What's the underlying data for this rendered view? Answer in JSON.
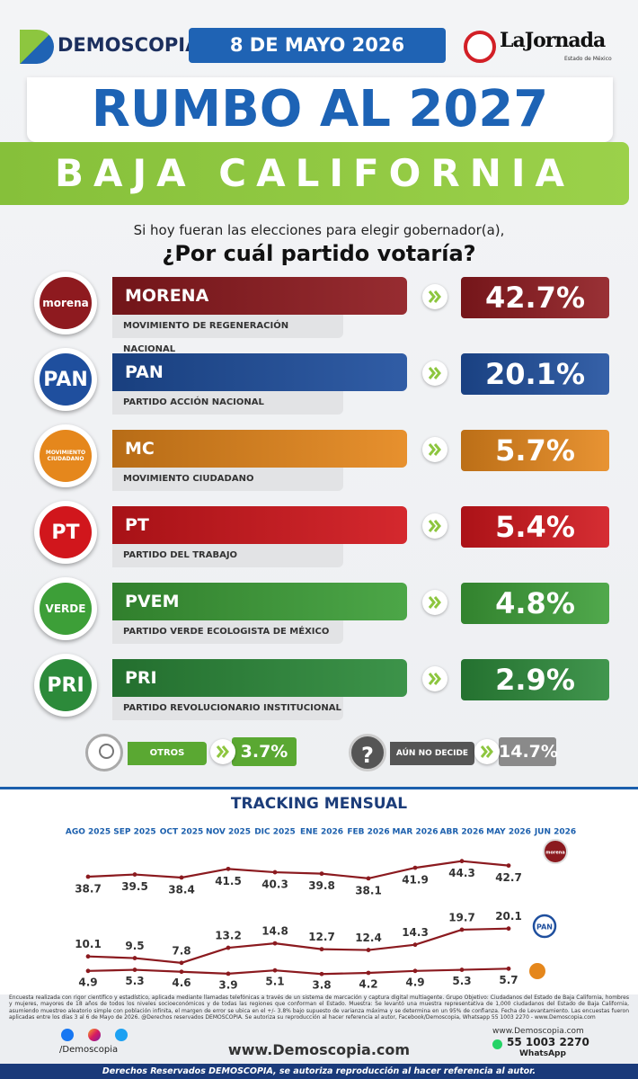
{
  "header": {
    "brand": "DEMOSCOPIA",
    "date": "8 DE MAYO 2026",
    "partner": "LaJornada",
    "partner_sub": "Estado de México"
  },
  "title": "RUMBO AL 2027",
  "subtitle": "BAJA CALIFORNIA",
  "question": {
    "line1": "Si hoy fueran las elecciones para elegir gobernador(a),",
    "line2": "¿Por cuál partido votaría?"
  },
  "parties": [
    {
      "logo": "morena",
      "name": "MORENA",
      "full_name": "MOVIMIENTO DE REGENERACIÓN NACIONAL",
      "result": "42.7%",
      "color": "#8e1a1f"
    },
    {
      "logo": "PAN",
      "name": "PAN",
      "full_name": "PARTIDO ACCIÓN NACIONAL",
      "result": "20.1%",
      "color": "#1f4f9e"
    },
    {
      "logo": "MOVIMIENTO CIUDADANO",
      "name": "MC",
      "full_name": "MOVIMIENTO CIUDADANO",
      "result": "5.7%",
      "color": "#e5871c"
    },
    {
      "logo": "PT",
      "name": "PT",
      "full_name": "PARTIDO DEL TRABAJO",
      "result": "5.4%",
      "color": "#d1161c"
    },
    {
      "logo": "VERDE",
      "name": "PVEM",
      "full_name": "PARTIDO VERDE ECOLOGISTA DE MÉXICO",
      "result": "4.8%",
      "color": "#3d9f38"
    },
    {
      "logo": "PRI",
      "name": "PRI",
      "full_name": "PARTIDO REVOLUCIONARIO INSTITUCIONAL",
      "result": "2.9%",
      "color": "#2c8a3a"
    }
  ],
  "others": {
    "label": "OTROS",
    "result": "3.7%"
  },
  "undecided": {
    "icon": "?",
    "label": "AÚN NO DECIDE",
    "result": "14.7%"
  },
  "chart_data": {
    "type": "line",
    "title": "TRACKING MENSUAL",
    "categories": [
      "AGO 2025",
      "SEP 2025",
      "OCT 2025",
      "NOV 2025",
      "DIC 2025",
      "ENE 2026",
      "FEB 2026",
      "MAR 2026",
      "ABR 2026",
      "MAY 2026",
      "JUN 2026"
    ],
    "ylim": [
      0,
      50
    ],
    "series": [
      {
        "name": "morena",
        "color": "#8b1a1f",
        "values": [
          38.7,
          39.5,
          38.4,
          41.5,
          40.3,
          39.8,
          38.1,
          41.9,
          44.3,
          42.7,
          null
        ]
      },
      {
        "name": "PAN",
        "color": "#8b1a1f",
        "values": [
          10.1,
          9.5,
          7.8,
          13.2,
          14.8,
          12.7,
          12.4,
          14.3,
          19.7,
          20.1,
          null
        ]
      },
      {
        "color": "#8b1a1f",
        "values": [
          4.9,
          5.3,
          4.6,
          3.9,
          5.1,
          3.8,
          4.2,
          4.9,
          5.3,
          5.7,
          null
        ]
      }
    ]
  },
  "footer": {
    "disclaimer": "Encuesta realizada con rigor científico y estadístico, aplicada mediante llamadas telefónicas a través de un sistema de marcación y captura digital multiagente. Grupo Objetivo: Ciudadanos del Estado de Baja California, hombres y mujeres, mayores de 18 años de todos los niveles socioeconómicos y de todas las regiones que conforman el Estado. Muestra: Se levantó una muestra representativa de 1,000 ciudadanos del Estado de Baja California, asumiendo muestreo aleatorio simple con población infinita, el margen de error se ubica en el +/- 3.8% bajo supuesto de varianza máxima y se determina en un 95% de confianza. Fecha de Levantamiento. Las encuestas fueron aplicadas entre los días 3 al 6 de Mayo de 2026. @Derechos reservados DEMOSCOPIA. Se autoriza su reproducción al hacer referencia al autor, Facebook/Demoscopia, Whatsapp 55 1003 2270 - www.Demoscopia.com",
    "social": "/Demoscopia",
    "website": "www.Demoscopia.com",
    "contact_site": "www.Demoscopia.com",
    "phone": "55 1003 2270",
    "phone_label": "WhatsApp",
    "rights": "Derechos Reservados DEMOSCOPIA, se autoriza reproducción al hacer referencia al autor."
  }
}
